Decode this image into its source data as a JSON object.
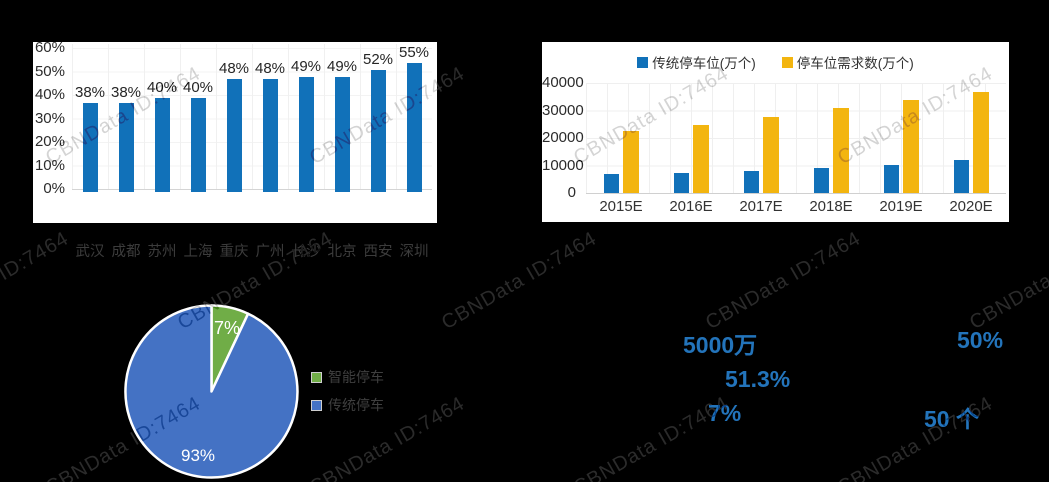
{
  "watermark": {
    "text": "CBNData ID:7464"
  },
  "stats": {
    "color": "#2374BB",
    "items": [
      "5000万",
      "50%",
      "51.3%",
      "7%",
      "50 个"
    ]
  },
  "chart_data": [
    {
      "type": "bar",
      "title": "",
      "categories": [
        "武汉",
        "成都",
        "苏州",
        "上海",
        "重庆",
        "广州",
        "长沙",
        "北京",
        "西安",
        "深圳"
      ],
      "values": [
        38,
        38,
        40,
        40,
        48,
        48,
        49,
        49,
        52,
        55
      ],
      "data_labels": [
        "38%",
        "38%",
        "40%",
        "40%",
        "48%",
        "48%",
        "49%",
        "49%",
        "52%",
        "55%"
      ],
      "unit": "%",
      "yticks": [
        "60%",
        "50%",
        "40%",
        "30%",
        "20%",
        "10%",
        "0%"
      ],
      "ylim": [
        0,
        60
      ],
      "grid": true,
      "bar_color": "#1171B9"
    },
    {
      "type": "bar",
      "title": "",
      "categories": [
        "2015E",
        "2016E",
        "2017E",
        "2018E",
        "2019E",
        "2020E"
      ],
      "series": [
        {
          "name": "传统停车位(万个)",
          "color": "#1171B9",
          "values": [
            7000,
            7400,
            8000,
            9200,
            10300,
            11900
          ]
        },
        {
          "name": "停车位需求数(万个)",
          "color": "#F3B50F",
          "values": [
            22400,
            24900,
            27600,
            30800,
            33800,
            36900
          ]
        }
      ],
      "yticks": [
        "40000",
        "30000",
        "20000",
        "10000",
        "0"
      ],
      "ylim": [
        0,
        40000
      ],
      "grid": true,
      "legend_position": "top"
    },
    {
      "type": "pie",
      "title": "",
      "slices": [
        {
          "label": "智能停车",
          "value": 7,
          "data_label": "7%",
          "color": "#70AD47"
        },
        {
          "label": "传统停车",
          "value": 93,
          "data_label": "93%",
          "color": "#4472C4"
        }
      ],
      "legend_position": "right"
    }
  ]
}
